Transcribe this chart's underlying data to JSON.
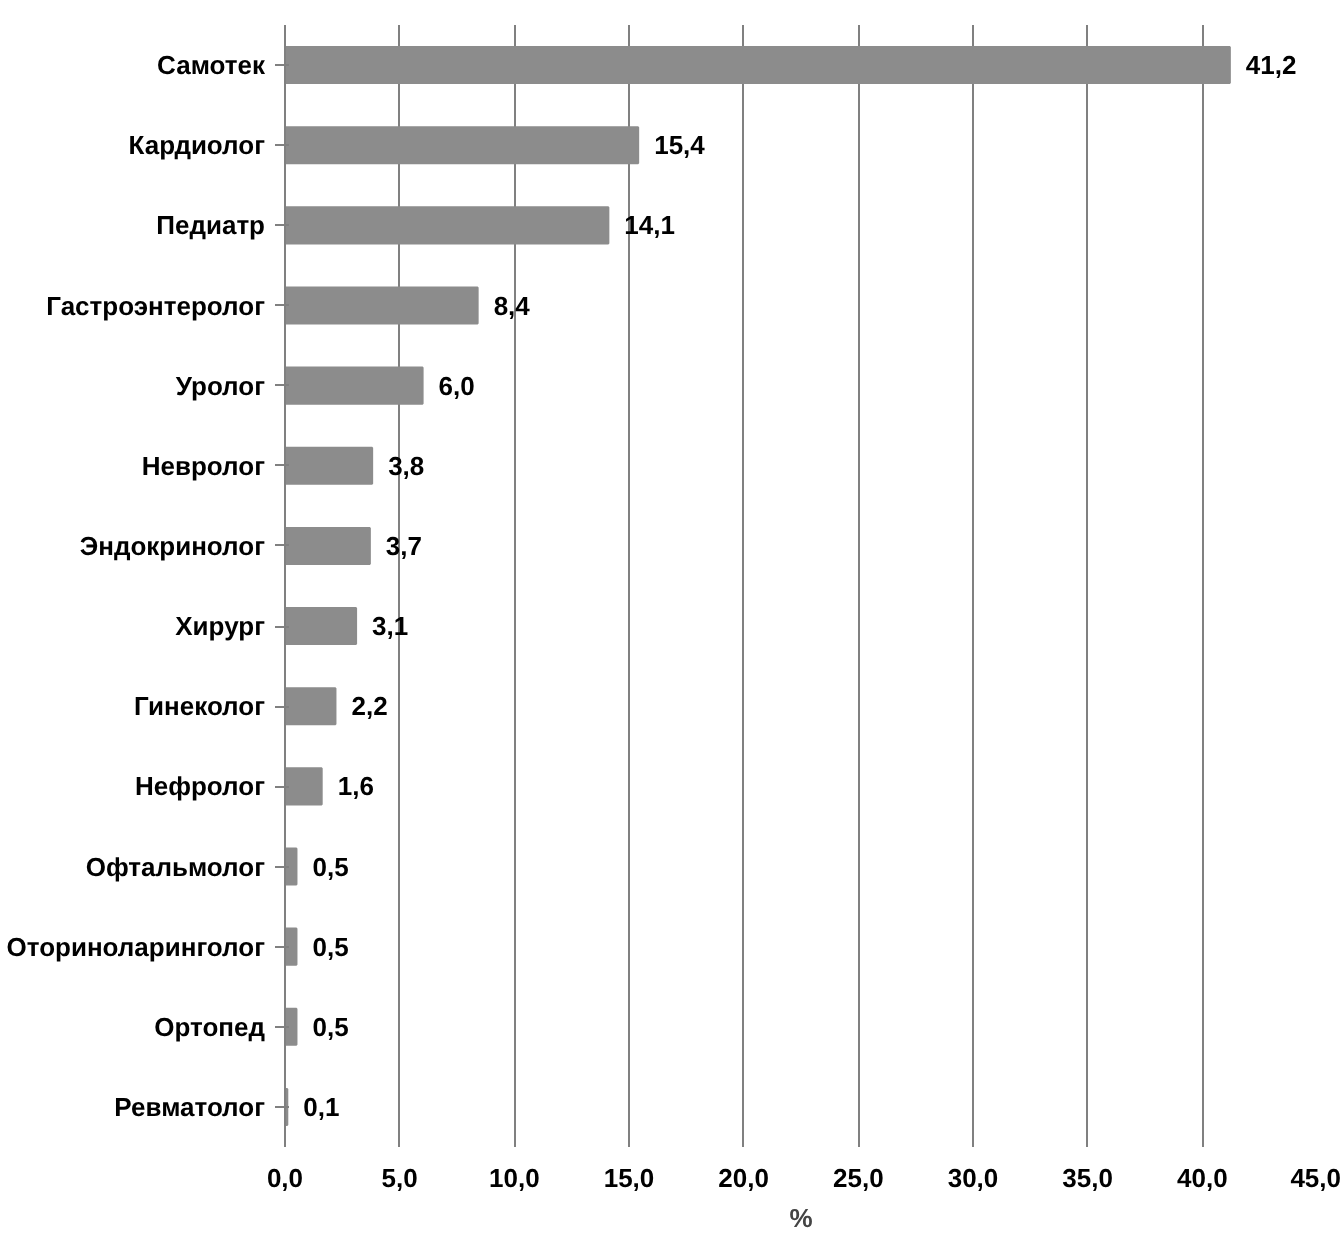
{
  "chart_data": {
    "type": "bar",
    "orientation": "horizontal",
    "xlabel": "%",
    "categories": [
      "Самотек",
      "Кардиолог",
      "Педиатр",
      "Гастроэнтеролог",
      "Уролог",
      "Невролог",
      "Эндокринолог",
      "Хирург",
      "Гинеколог",
      "Нефролог",
      "Офтальмолог",
      "Оториноларинголог",
      "Ортопед",
      "Ревматолог"
    ],
    "values": [
      41.2,
      15.4,
      14.1,
      8.4,
      6.0,
      3.8,
      3.7,
      3.1,
      2.2,
      1.6,
      0.5,
      0.5,
      0.5,
      0.1
    ],
    "value_labels": [
      "41,2",
      "15,4",
      "14,1",
      "8,4",
      "6,0",
      "3,8",
      "3,7",
      "3,1",
      "2,2",
      "1,6",
      "0,5",
      "0,5",
      "0,5",
      "0,1"
    ],
    "color": "#8c8c8c",
    "xlim": [
      0,
      45
    ],
    "xticks": [
      {
        "value": 0,
        "label": "0,0"
      },
      {
        "value": 5,
        "label": "5,0"
      },
      {
        "value": 10,
        "label": "10,0"
      },
      {
        "value": 15,
        "label": "15,0"
      },
      {
        "value": 20,
        "label": "20,0"
      },
      {
        "value": 25,
        "label": "25,0"
      },
      {
        "value": 30,
        "label": "30,0"
      },
      {
        "value": 35,
        "label": "35,0"
      },
      {
        "value": 40,
        "label": "40,0"
      },
      {
        "value": 45,
        "label": "45,0"
      }
    ],
    "grid": "x"
  }
}
